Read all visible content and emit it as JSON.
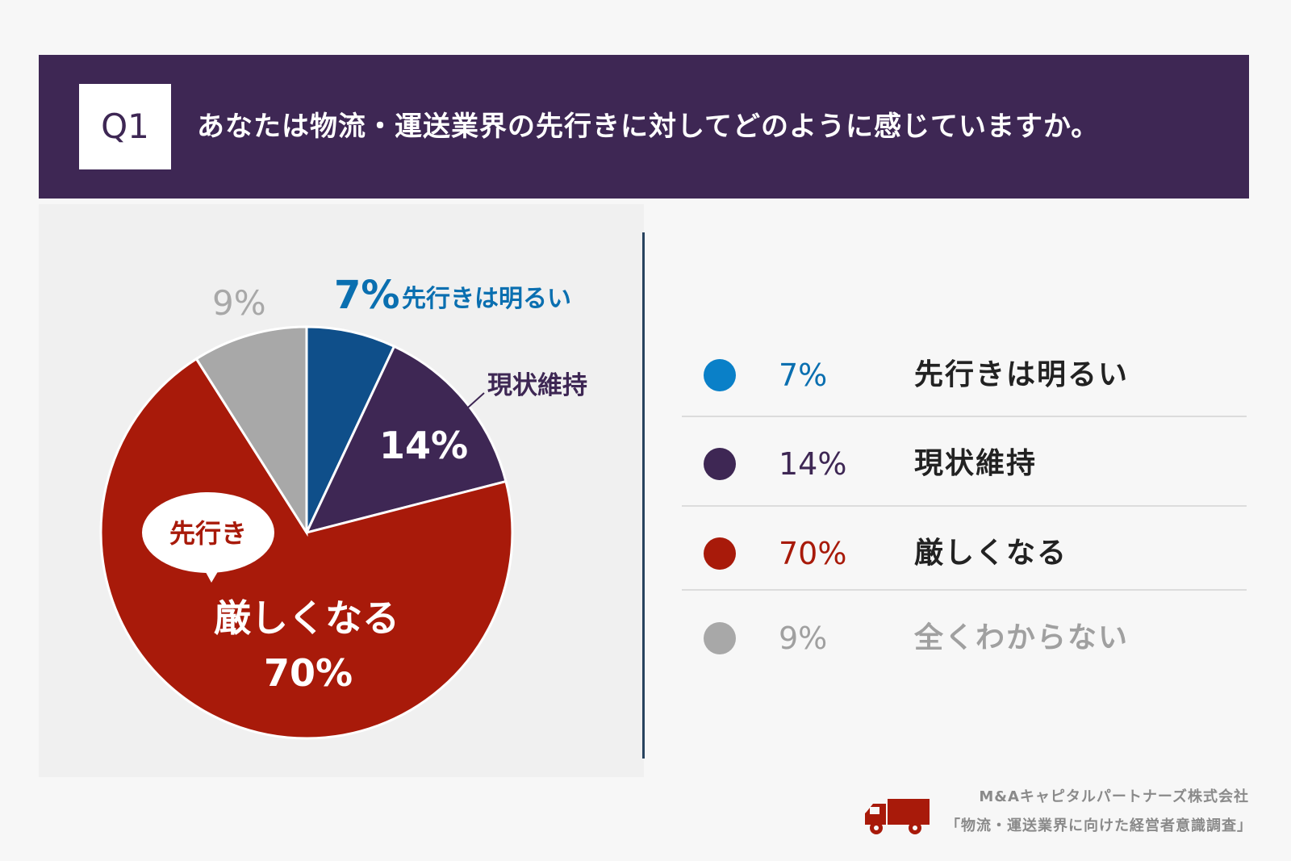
{
  "header": {
    "q_number": "Q1",
    "question": "あなたは物流・運送業界の先行きに対してどのように感じていますか。"
  },
  "chart_data": {
    "type": "pie",
    "title": "あなたは物流・運送業界の先行きに対してどのように感じていますか。",
    "slices": [
      {
        "label": "先行きは明るい",
        "value": 7,
        "pct_label": "7%",
        "color": "#0f4f8a",
        "legend_color": "#0a80c8"
      },
      {
        "label": "現状維持",
        "value": 14,
        "pct_label": "14%",
        "color": "#3e2754",
        "legend_color": "#3e2754"
      },
      {
        "label": "厳しくなる",
        "value": 70,
        "pct_label": "70%",
        "color": "#a81a0a",
        "legend_color": "#a81a0a"
      },
      {
        "label": "全くわからない",
        "value": 9,
        "pct_label": "9%",
        "color": "#a8a8a8",
        "legend_color": "#a8a8a8"
      }
    ],
    "callout": "先行き"
  },
  "legend": [
    {
      "pct": "7%",
      "label": "先行きは明るい",
      "pct_color": "#0a6fb0",
      "label_color": "#222222"
    },
    {
      "pct": "14%",
      "label": "現状維持",
      "pct_color": "#3e2754",
      "label_color": "#222222"
    },
    {
      "pct": "70%",
      "label": "厳しくなる",
      "pct_color": "#a81a0a",
      "label_color": "#222222"
    },
    {
      "pct": "9%",
      "label": "全くわからない",
      "pct_color": "#a0a0a0",
      "label_color": "#a0a0a0"
    }
  ],
  "pie_labels": {
    "bright_pct": "7%",
    "bright_label": "先行きは明るい",
    "maintain_label": "現状維持",
    "maintain_pct": "14%",
    "unknown_pct": "9%",
    "severe_callout": "先行き",
    "severe_label": "厳しくなる",
    "severe_pct": "70%"
  },
  "footer": {
    "company": "M&Aキャピタルパートナーズ株式会社",
    "survey": "「物流・運送業界に向けた経営者意識調査」"
  },
  "colors": {
    "header_bg": "#3e2754",
    "truck": "#a81a0a",
    "divider": "#27425e"
  }
}
